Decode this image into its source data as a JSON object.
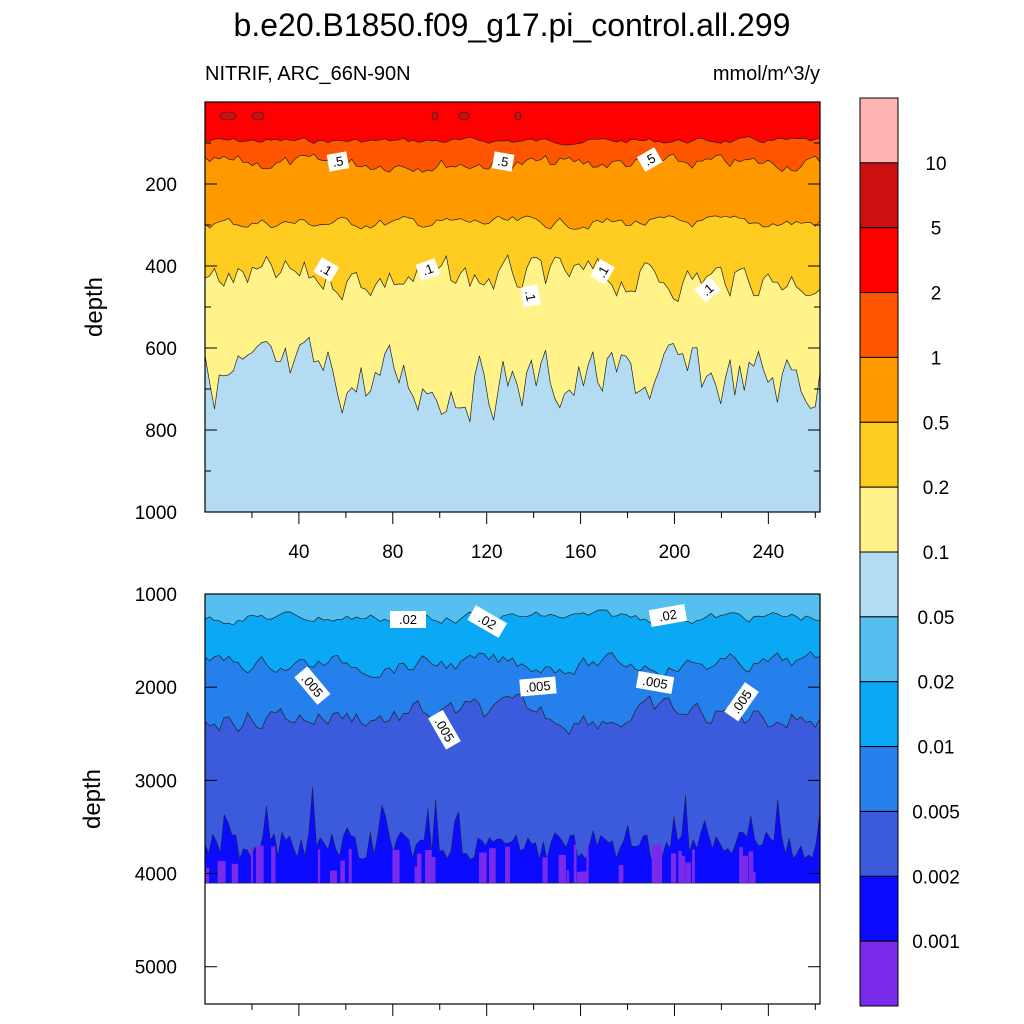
{
  "header": {
    "title": "b.e20.B1850.f09_g17.pi_control.all.299",
    "variable_label": "NITRIF, ARC_66N-90N",
    "units_label": "mmol/m^3/y"
  },
  "colorbar": {
    "levels": [
      "10",
      "5",
      "2",
      "1",
      "0.5",
      "0.2",
      "0.1",
      "0.05",
      "0.02",
      "0.01",
      "0.005",
      "0.002",
      "0.001"
    ],
    "colors": [
      "#ffb3b3",
      "#cc1010",
      "#ff0000",
      "#ff5500",
      "#ff9900",
      "#ffcc22",
      "#fff38a",
      "#b3dcf2",
      "#55c0f0",
      "#0aa8f5",
      "#2580ec",
      "#3c5bdc",
      "#0b0bff",
      "#7a2bea"
    ]
  },
  "chart_data": [
    {
      "type": "contour",
      "panel": "upper",
      "title": "NITRIF, ARC_66N-90N",
      "units": "mmol/m^3/y",
      "ylabel": "depth",
      "xlabel": "",
      "xlim": [
        0,
        262
      ],
      "ylim": [
        1000,
        0
      ],
      "x_ticks": [
        "40",
        "80",
        "120",
        "160",
        "200",
        "240"
      ],
      "y_ticks": [
        "200",
        "400",
        "600",
        "800",
        "1000"
      ],
      "y_tick_values": [
        200,
        400,
        600,
        800,
        1000
      ],
      "contour_labels": [
        ".5",
        ".5",
        ".5",
        ".1",
        ".1",
        ".1",
        ".1",
        ".1"
      ],
      "contours": [
        {
          "level": 0.5,
          "mean_depth": 150,
          "amplitude": 10
        },
        {
          "level": 0.2,
          "mean_depth": 295,
          "amplitude": 8
        },
        {
          "level": 0.1,
          "mean_depth": 430,
          "amplitude": 25
        },
        {
          "level": 0.05,
          "mean_depth": 680,
          "amplitude": 45
        }
      ]
    },
    {
      "type": "contour",
      "panel": "lower",
      "ylabel": "depth",
      "xlabel": "",
      "xlim": [
        0,
        262
      ],
      "ylim": [
        5400,
        1000
      ],
      "x_ticks": [],
      "y_ticks": [
        "1000",
        "2000",
        "3000",
        "4000",
        "5000"
      ],
      "y_tick_values": [
        1000,
        2000,
        3000,
        4000,
        5000
      ],
      "data_bottom_depth": 4100,
      "contour_labels": [
        ".02",
        ".02",
        ".02",
        ".005",
        ".005",
        ".005",
        ".005",
        ".005"
      ],
      "contours": [
        {
          "level": 0.02,
          "mean_depth": 1250,
          "amplitude": 90
        },
        {
          "level": 0.01,
          "mean_depth": 1750,
          "amplitude": 150
        },
        {
          "level": 0.005,
          "mean_depth": 2300,
          "amplitude": 220
        }
      ]
    }
  ]
}
